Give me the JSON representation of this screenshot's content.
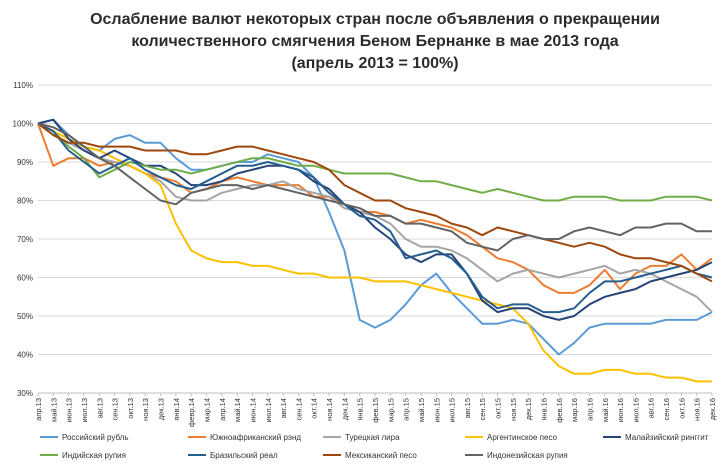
{
  "chart_data": {
    "type": "line",
    "title": [
      "Ослабление валют некоторых стран после объявления о прекращении",
      "количественного смягчения Беном Бернанке в мае 2013 года",
      "(апрель 2013 = 100%)"
    ],
    "xlabel": "",
    "ylabel": "",
    "ylim": [
      30,
      110
    ],
    "yticks": [
      "30%",
      "40%",
      "50%",
      "60%",
      "70%",
      "80%",
      "90%",
      "100%",
      "110%"
    ],
    "grid": true,
    "legend_position": "bottom",
    "categories": [
      "апр.13",
      "май.13",
      "июн.13",
      "июл.13",
      "авг.13",
      "сен.13",
      "окт.13",
      "ноя.13",
      "дек.13",
      "янв.14",
      "февр.14",
      "мар.14",
      "апр.14",
      "май.14",
      "июн.14",
      "июл.14",
      "авг.14",
      "сен.14",
      "окт.14",
      "ноя.14",
      "дек.14",
      "янв.15",
      "фев.15",
      "мар.15",
      "апр.15",
      "май.15",
      "июн.15",
      "июл.15",
      "авг.15",
      "сен.15",
      "окт.15",
      "ноя.15",
      "дек.15",
      "янв.16",
      "фев.16",
      "мар.16",
      "апр.16",
      "май.16",
      "июн.16",
      "июл.16",
      "авг.16",
      "сен.16",
      "окт.16",
      "ноя.16",
      "дек.16"
    ],
    "series": [
      {
        "name": "Российский рубль",
        "color": "#5b9bd5",
        "values": [
          100,
          101,
          97,
          94,
          93,
          96,
          97,
          95,
          95,
          91,
          88,
          88,
          89,
          90,
          90,
          92,
          91,
          90,
          86,
          77,
          67,
          49,
          47,
          49,
          53,
          58,
          61,
          56,
          52,
          48,
          48,
          49,
          48,
          44,
          40,
          43,
          47,
          48,
          48,
          48,
          48,
          49,
          49,
          49,
          51
        ]
      },
      {
        "name": "Южноафриканский рэнд",
        "color": "#ed7d31",
        "values": [
          100,
          89,
          91,
          91,
          89,
          90,
          89,
          87,
          86,
          85,
          82,
          83,
          85,
          86,
          85,
          84,
          84,
          84,
          81,
          81,
          79,
          77,
          77,
          76,
          74,
          75,
          74,
          73,
          71,
          68,
          65,
          64,
          62,
          58,
          56,
          56,
          58,
          62,
          57,
          61,
          63,
          63,
          66,
          62,
          65
        ]
      },
      {
        "name": "Турецкая лира",
        "color": "#a5a5a5",
        "values": [
          100,
          97,
          95,
          93,
          91,
          90,
          89,
          87,
          85,
          81,
          80,
          80,
          82,
          83,
          84,
          84,
          85,
          83,
          82,
          81,
          78,
          77,
          76,
          74,
          70,
          68,
          68,
          67,
          65,
          62,
          59,
          61,
          62,
          61,
          60,
          61,
          62,
          63,
          61,
          62,
          61,
          59,
          57,
          55,
          51
        ]
      },
      {
        "name": "Аргентинское песо",
        "color": "#ffc000",
        "values": [
          100,
          98,
          96,
          94,
          93,
          91,
          89,
          87,
          84,
          74,
          67,
          65,
          64,
          64,
          63,
          63,
          62,
          61,
          61,
          60,
          60,
          60,
          59,
          59,
          59,
          58,
          57,
          56,
          55,
          54,
          53,
          52,
          48,
          41,
          37,
          35,
          35,
          36,
          36,
          35,
          35,
          34,
          34,
          33,
          33
        ]
      },
      {
        "name": "Малайзийский ринггит",
        "color": "#264478",
        "values": [
          100,
          101,
          96,
          93,
          91,
          93,
          91,
          89,
          89,
          87,
          84,
          84,
          85,
          87,
          88,
          89,
          89,
          88,
          85,
          83,
          79,
          77,
          73,
          70,
          66,
          64,
          66,
          66,
          61,
          54,
          51,
          52,
          52,
          50,
          49,
          50,
          53,
          55,
          56,
          57,
          59,
          60,
          61,
          62,
          64
        ]
      },
      {
        "name": "Индийская рупия",
        "color": "#70ad47",
        "values": [
          100,
          98,
          94,
          91,
          86,
          88,
          90,
          89,
          88,
          88,
          87,
          88,
          89,
          90,
          91,
          91,
          90,
          89,
          89,
          88,
          87,
          87,
          87,
          87,
          86,
          85,
          85,
          84,
          83,
          82,
          83,
          82,
          81,
          80,
          80,
          81,
          81,
          81,
          80,
          80,
          80,
          81,
          81,
          81,
          80
        ]
      },
      {
        "name": "Бразильский реал",
        "color": "#255e91",
        "values": [
          100,
          98,
          93,
          90,
          87,
          89,
          91,
          88,
          86,
          84,
          83,
          85,
          87,
          89,
          89,
          90,
          89,
          88,
          86,
          82,
          79,
          76,
          75,
          72,
          65,
          66,
          67,
          65,
          61,
          55,
          52,
          53,
          53,
          51,
          51,
          52,
          56,
          59,
          59,
          60,
          61,
          62,
          63,
          61,
          60
        ]
      },
      {
        "name": "Мексиканский песо",
        "color": "#9e480e",
        "values": [
          100,
          97,
          95,
          95,
          94,
          94,
          94,
          93,
          93,
          93,
          92,
          92,
          93,
          94,
          94,
          93,
          92,
          91,
          90,
          88,
          84,
          82,
          80,
          80,
          78,
          77,
          76,
          74,
          73,
          71,
          73,
          72,
          71,
          70,
          69,
          68,
          69,
          68,
          66,
          65,
          65,
          64,
          63,
          61,
          59
        ]
      },
      {
        "name": "Индонезийская рупия",
        "color": "#636363",
        "values": [
          100,
          99,
          97,
          94,
          91,
          89,
          86,
          83,
          80,
          79,
          82,
          83,
          84,
          84,
          83,
          84,
          83,
          82,
          81,
          80,
          79,
          78,
          76,
          76,
          74,
          74,
          73,
          72,
          69,
          68,
          67,
          70,
          71,
          70,
          70,
          72,
          73,
          72,
          71,
          73,
          73,
          74,
          74,
          72,
          72
        ]
      }
    ]
  }
}
